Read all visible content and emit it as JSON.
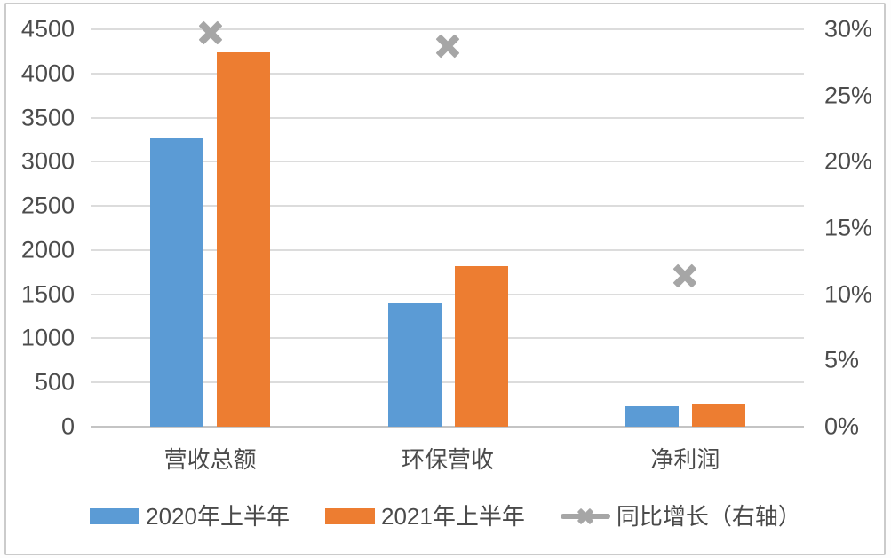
{
  "chart_data": {
    "type": "bar",
    "subtype": "grouped-bars-with-right-axis-markers",
    "title": "",
    "categories": [
      "营收总额",
      "环保营收",
      "净利润"
    ],
    "series": [
      {
        "name": "2020年上半年",
        "type": "bar",
        "axis": "left",
        "color": "#5b9bd5",
        "values": [
          3270,
          1410,
          235
        ]
      },
      {
        "name": "2021年上半年",
        "type": "bar",
        "axis": "left",
        "color": "#ed7d31",
        "values": [
          4240,
          1815,
          262
        ]
      },
      {
        "name": "同比增长（右轴）",
        "type": "marker",
        "axis": "right",
        "color": "#a6a6a6",
        "marker": "x",
        "values": [
          29.7,
          28.7,
          11.4
        ],
        "unit": "%"
      }
    ],
    "left_axis": {
      "min": 0,
      "max": 4500,
      "step": 500,
      "tick_labels": [
        "0",
        "500",
        "1000",
        "1500",
        "2000",
        "2500",
        "3000",
        "3500",
        "4000",
        "4500"
      ]
    },
    "right_axis": {
      "min": 0,
      "max": 30,
      "step": 5,
      "tick_labels": [
        "0%",
        "5%",
        "10%",
        "15%",
        "20%",
        "25%",
        "30%"
      ]
    },
    "grid": true,
    "legend_position": "bottom"
  },
  "colors": {
    "bar_2020": "#5b9bd5",
    "bar_2021": "#ed7d31",
    "growth_marker": "#a6a6a6",
    "gridline": "#dcdcdc",
    "zero_line": "#c4c4c4",
    "axis_text": "#4c4c4c",
    "frame_border": "#cbcbcb",
    "background": "#ffffff"
  }
}
